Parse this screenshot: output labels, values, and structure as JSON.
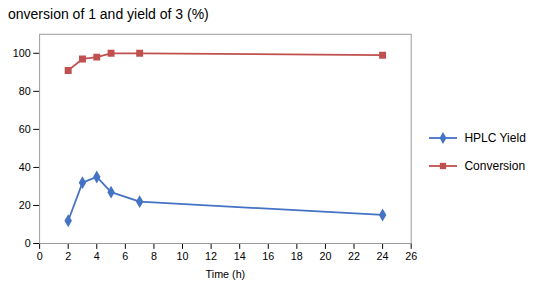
{
  "chart_data": {
    "type": "line",
    "title": "onversion of 1 and yield of 3 (%)",
    "xlabel": "Time (h)",
    "x": [
      2,
      3,
      4,
      5,
      7,
      24
    ],
    "series": [
      {
        "name": "HPLC Yield",
        "color": "#4472C4",
        "marker": "diamond",
        "values": [
          12,
          32,
          35,
          27,
          22,
          15
        ]
      },
      {
        "name": "Conversion",
        "color": "#C0504D",
        "marker": "square",
        "values": [
          91,
          97,
          98,
          100,
          100,
          99
        ]
      }
    ],
    "xlim": [
      0,
      26
    ],
    "ylim": [
      0,
      110
    ],
    "xticks": [
      0,
      2,
      4,
      6,
      8,
      10,
      12,
      14,
      16,
      18,
      20,
      22,
      24,
      26
    ],
    "yticks": [
      0,
      20,
      40,
      60,
      80,
      100
    ],
    "grid": false,
    "legend": "right"
  }
}
